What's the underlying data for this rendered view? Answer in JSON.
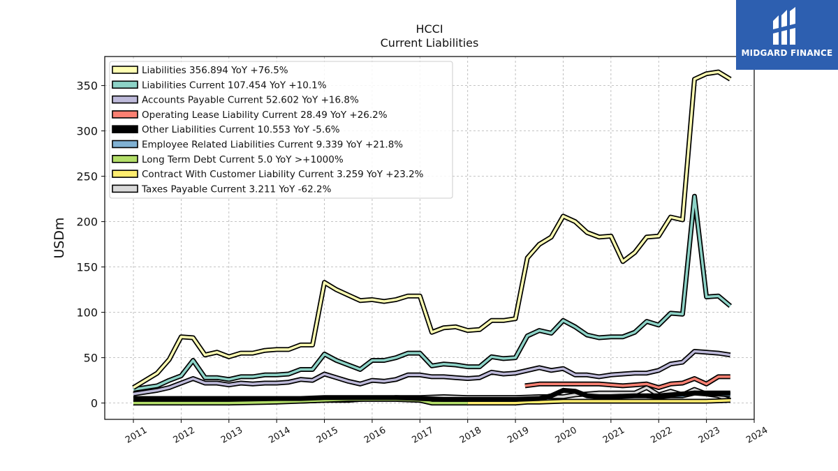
{
  "brand": {
    "name": "MIDGARD FINANCE",
    "color": "#2d5fb0"
  },
  "chart_data": {
    "type": "line",
    "title": "HCCI",
    "subtitle": "Current  Liabilities",
    "ylabel": "USDm",
    "xlim": [
      2010.4,
      2024.0
    ],
    "ylim": [
      -18,
      382
    ],
    "yticks": [
      0,
      50,
      100,
      150,
      200,
      250,
      300,
      350
    ],
    "xticks": [
      "2011",
      "2012",
      "2013",
      "2014",
      "2015",
      "2016",
      "2017",
      "2018",
      "2019",
      "2020",
      "2021",
      "2022",
      "2023",
      "2024"
    ],
    "grid": true,
    "legend_position": "top-left",
    "series": [
      {
        "name": "Liabilities",
        "legend": "Liabilities  356.894 YoY +76.5%",
        "color": "#ffffb3",
        "points": [
          [
            2011.0,
            17
          ],
          [
            2011.5,
            33
          ],
          [
            2011.75,
            48
          ],
          [
            2012.0,
            73
          ],
          [
            2012.25,
            72
          ],
          [
            2012.5,
            53
          ],
          [
            2012.75,
            56
          ],
          [
            2013.0,
            51
          ],
          [
            2013.25,
            55
          ],
          [
            2013.5,
            55
          ],
          [
            2013.75,
            58
          ],
          [
            2014.0,
            59
          ],
          [
            2014.25,
            59
          ],
          [
            2014.5,
            64
          ],
          [
            2014.75,
            64
          ],
          [
            2015.0,
            133
          ],
          [
            2015.25,
            125
          ],
          [
            2015.5,
            119
          ],
          [
            2015.75,
            113
          ],
          [
            2016.0,
            114
          ],
          [
            2016.25,
            112
          ],
          [
            2016.5,
            114
          ],
          [
            2016.75,
            118
          ],
          [
            2017.0,
            118
          ],
          [
            2017.25,
            78
          ],
          [
            2017.5,
            83
          ],
          [
            2017.75,
            84
          ],
          [
            2018.0,
            80
          ],
          [
            2018.25,
            81
          ],
          [
            2018.5,
            91
          ],
          [
            2018.75,
            91
          ],
          [
            2019.0,
            93
          ],
          [
            2019.25,
            160
          ],
          [
            2019.5,
            175
          ],
          [
            2019.75,
            183
          ],
          [
            2020.0,
            206
          ],
          [
            2020.25,
            200
          ],
          [
            2020.5,
            188
          ],
          [
            2020.75,
            183
          ],
          [
            2021.0,
            184
          ],
          [
            2021.25,
            156
          ],
          [
            2021.5,
            166
          ],
          [
            2021.75,
            183
          ],
          [
            2022.0,
            184
          ],
          [
            2022.25,
            205
          ],
          [
            2022.5,
            202
          ],
          [
            2022.75,
            357
          ],
          [
            2023.0,
            363
          ],
          [
            2023.25,
            365
          ],
          [
            2023.5,
            357
          ]
        ]
      },
      {
        "name": "Liabilities Current",
        "legend": "Liabilities Current  107.454 YoY +10.1%",
        "color": "#8dd3c7",
        "points": [
          [
            2011.0,
            15
          ],
          [
            2011.5,
            19
          ],
          [
            2011.75,
            25
          ],
          [
            2012.0,
            30
          ],
          [
            2012.25,
            47
          ],
          [
            2012.5,
            28
          ],
          [
            2012.75,
            28
          ],
          [
            2013.0,
            26
          ],
          [
            2013.25,
            29
          ],
          [
            2013.5,
            29
          ],
          [
            2013.75,
            31
          ],
          [
            2014.0,
            31
          ],
          [
            2014.25,
            32
          ],
          [
            2014.5,
            37
          ],
          [
            2014.75,
            37
          ],
          [
            2015.0,
            54
          ],
          [
            2015.25,
            47
          ],
          [
            2015.5,
            42
          ],
          [
            2015.75,
            37
          ],
          [
            2016.0,
            47
          ],
          [
            2016.25,
            47
          ],
          [
            2016.5,
            50
          ],
          [
            2016.75,
            55
          ],
          [
            2017.0,
            55
          ],
          [
            2017.25,
            41
          ],
          [
            2017.5,
            43
          ],
          [
            2017.75,
            42
          ],
          [
            2018.0,
            40
          ],
          [
            2018.25,
            40
          ],
          [
            2018.5,
            51
          ],
          [
            2018.75,
            49
          ],
          [
            2019.0,
            50
          ],
          [
            2019.25,
            74
          ],
          [
            2019.5,
            80
          ],
          [
            2019.75,
            77
          ],
          [
            2020.0,
            91
          ],
          [
            2020.25,
            84
          ],
          [
            2020.5,
            75
          ],
          [
            2020.75,
            72
          ],
          [
            2021.0,
            73
          ],
          [
            2021.25,
            73
          ],
          [
            2021.5,
            78
          ],
          [
            2021.75,
            90
          ],
          [
            2022.0,
            86
          ],
          [
            2022.25,
            99
          ],
          [
            2022.5,
            98
          ],
          [
            2022.75,
            228
          ],
          [
            2023.0,
            117
          ],
          [
            2023.25,
            118
          ],
          [
            2023.5,
            107
          ]
        ]
      },
      {
        "name": "Accounts Payable Current",
        "legend": "Accounts Payable Current  52.602 YoY +16.8%",
        "color": "#bebada",
        "points": [
          [
            2011.0,
            10
          ],
          [
            2011.5,
            14
          ],
          [
            2011.75,
            17
          ],
          [
            2012.0,
            22
          ],
          [
            2012.25,
            27
          ],
          [
            2012.5,
            22
          ],
          [
            2012.75,
            22
          ],
          [
            2013.0,
            20
          ],
          [
            2013.25,
            22
          ],
          [
            2013.5,
            21
          ],
          [
            2013.75,
            22
          ],
          [
            2014.0,
            22
          ],
          [
            2014.25,
            23
          ],
          [
            2014.5,
            26
          ],
          [
            2014.75,
            25
          ],
          [
            2015.0,
            32
          ],
          [
            2015.25,
            28
          ],
          [
            2015.5,
            24
          ],
          [
            2015.75,
            21
          ],
          [
            2016.0,
            25
          ],
          [
            2016.25,
            24
          ],
          [
            2016.5,
            26
          ],
          [
            2016.75,
            31
          ],
          [
            2017.0,
            31
          ],
          [
            2017.25,
            29
          ],
          [
            2017.5,
            29
          ],
          [
            2017.75,
            28
          ],
          [
            2018.0,
            27
          ],
          [
            2018.25,
            28
          ],
          [
            2018.5,
            34
          ],
          [
            2018.75,
            32
          ],
          [
            2019.0,
            33
          ],
          [
            2019.25,
            36
          ],
          [
            2019.5,
            39
          ],
          [
            2019.75,
            36
          ],
          [
            2020.0,
            38
          ],
          [
            2020.25,
            31
          ],
          [
            2020.5,
            31
          ],
          [
            2020.75,
            29
          ],
          [
            2021.0,
            31
          ],
          [
            2021.25,
            32
          ],
          [
            2021.5,
            33
          ],
          [
            2021.75,
            33
          ],
          [
            2022.0,
            36
          ],
          [
            2022.25,
            43
          ],
          [
            2022.5,
            45
          ],
          [
            2022.75,
            57
          ],
          [
            2023.0,
            56
          ],
          [
            2023.25,
            55
          ],
          [
            2023.5,
            53
          ]
        ]
      },
      {
        "name": "Operating Lease Liability Current",
        "legend": "Operating Lease Liability Current  28.49 YoY +26.2%",
        "color": "#fb8072",
        "points": [
          [
            2019.2,
            19
          ],
          [
            2019.5,
            21
          ],
          [
            2019.75,
            21
          ],
          [
            2020.0,
            21
          ],
          [
            2020.25,
            21
          ],
          [
            2020.5,
            21
          ],
          [
            2020.75,
            21
          ],
          [
            2021.0,
            20
          ],
          [
            2021.25,
            19
          ],
          [
            2021.5,
            20
          ],
          [
            2021.75,
            21
          ],
          [
            2022.0,
            17
          ],
          [
            2022.25,
            21
          ],
          [
            2022.5,
            22
          ],
          [
            2022.75,
            27
          ],
          [
            2023.0,
            21
          ],
          [
            2023.25,
            29
          ],
          [
            2023.5,
            29
          ]
        ]
      },
      {
        "name": "Other Liabilities Current",
        "legend": "Other Liabilities Current  10.553 YoY -5.6%",
        "color": "#000000",
        "points": [
          [
            2011.0,
            5
          ],
          [
            2011.75,
            5
          ],
          [
            2012.0,
            5
          ],
          [
            2012.75,
            5
          ],
          [
            2013.0,
            5
          ],
          [
            2013.5,
            5
          ],
          [
            2014.0,
            5
          ],
          [
            2014.5,
            5
          ],
          [
            2015.0,
            6
          ],
          [
            2015.5,
            6
          ],
          [
            2016.0,
            6
          ],
          [
            2016.5,
            6
          ],
          [
            2017.0,
            5
          ],
          [
            2017.5,
            4
          ],
          [
            2018.0,
            4
          ],
          [
            2018.5,
            4
          ],
          [
            2019.0,
            4
          ],
          [
            2019.5,
            5
          ],
          [
            2019.75,
            8
          ],
          [
            2020.0,
            14
          ],
          [
            2020.25,
            13
          ],
          [
            2020.5,
            8
          ],
          [
            2020.75,
            7
          ],
          [
            2021.0,
            7
          ],
          [
            2021.5,
            8
          ],
          [
            2022.0,
            8
          ],
          [
            2022.5,
            10
          ],
          [
            2022.75,
            11
          ],
          [
            2023.0,
            11
          ],
          [
            2023.5,
            11
          ]
        ]
      },
      {
        "name": "Employee Related Liabilities Current",
        "legend": "Employee Related Liabilities Current  9.339 YoY +21.8%",
        "color": "#80b1d3",
        "points": [
          [
            2021.75,
            8
          ],
          [
            2022.0,
            7
          ],
          [
            2022.25,
            8
          ],
          [
            2022.5,
            8
          ],
          [
            2022.75,
            11
          ],
          [
            2023.0,
            10
          ],
          [
            2023.25,
            10
          ],
          [
            2023.5,
            9
          ]
        ]
      },
      {
        "name": "Long Term Debt Current",
        "legend": "Long Term Debt Current  5.0 YoY >+1000%",
        "color": "#b3de69",
        "points": [
          [
            2011.0,
            0
          ],
          [
            2011.5,
            0
          ],
          [
            2012.0,
            0
          ],
          [
            2013.0,
            0
          ],
          [
            2014.0,
            1
          ],
          [
            2015.0,
            3
          ],
          [
            2015.5,
            4
          ],
          [
            2016.0,
            4
          ],
          [
            2016.5,
            4
          ],
          [
            2017.0,
            3
          ],
          [
            2017.25,
            0
          ],
          [
            2017.5,
            0
          ],
          [
            2018.0,
            0
          ]
        ]
      },
      {
        "name": "Contract With Customer Liability Current",
        "legend": "Contract With Customer Liability Current  3.259 YoY +23.2%",
        "color": "#ffed6f",
        "points": [
          [
            2018.0,
            0
          ],
          [
            2018.5,
            0
          ],
          [
            2019.0,
            0
          ],
          [
            2019.25,
            1
          ],
          [
            2019.5,
            1
          ],
          [
            2020.0,
            2
          ],
          [
            2020.5,
            2
          ],
          [
            2021.0,
            2
          ],
          [
            2021.5,
            2
          ],
          [
            2022.0,
            2
          ],
          [
            2022.5,
            2
          ],
          [
            2023.0,
            2
          ],
          [
            2023.5,
            3
          ]
        ]
      },
      {
        "name": "Taxes Payable Current",
        "legend": "Taxes Payable Current  3.211 YoY -62.2%",
        "color": "#d9d9d9",
        "points": [
          [
            2011.0,
            2
          ],
          [
            2011.5,
            2
          ],
          [
            2011.75,
            2
          ],
          [
            2012.0,
            2
          ],
          [
            2012.5,
            2
          ],
          [
            2013.0,
            2
          ],
          [
            2013.5,
            2
          ],
          [
            2014.0,
            2
          ],
          [
            2014.5,
            2
          ],
          [
            2015.0,
            3
          ],
          [
            2015.25,
            3
          ],
          [
            2015.5,
            3
          ],
          [
            2016.0,
            5
          ],
          [
            2016.25,
            5
          ],
          [
            2016.5,
            6
          ],
          [
            2017.0,
            6
          ],
          [
            2017.5,
            7
          ],
          [
            2018.0,
            6
          ],
          [
            2018.5,
            6
          ],
          [
            2019.0,
            6
          ],
          [
            2019.5,
            7
          ],
          [
            2020.0,
            7
          ],
          [
            2020.25,
            9
          ],
          [
            2020.5,
            10
          ],
          [
            2020.75,
            11
          ],
          [
            2021.0,
            11
          ],
          [
            2021.5,
            11
          ],
          [
            2021.75,
            17
          ],
          [
            2022.0,
            9
          ],
          [
            2022.25,
            13
          ],
          [
            2022.5,
            9
          ],
          [
            2022.75,
            15
          ],
          [
            2023.0,
            10
          ],
          [
            2023.25,
            8
          ],
          [
            2023.5,
            3
          ]
        ]
      }
    ]
  }
}
